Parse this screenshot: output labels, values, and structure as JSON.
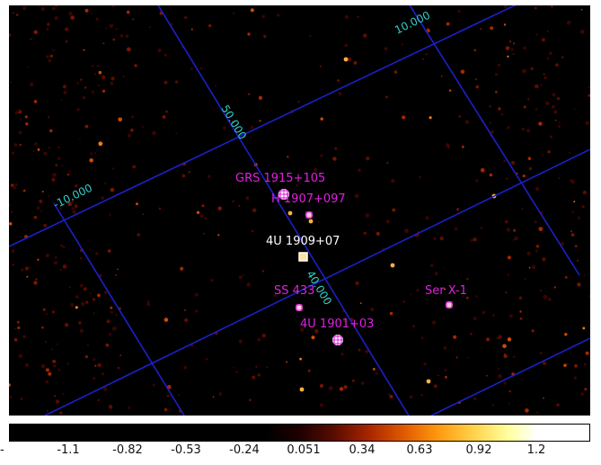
{
  "image": {
    "sources": [
      {
        "label": "GRS 1915+105",
        "color": "#e020e0"
      },
      {
        "label": "H 1907+097",
        "color": "#e020e0"
      },
      {
        "label": "4U 1909+07",
        "color": "#ffffff"
      },
      {
        "label": "SS 433",
        "color": "#e020e0"
      },
      {
        "label": "4U 1901+03",
        "color": "#e020e0"
      },
      {
        "label": "Ser X-1",
        "color": "#e020e0"
      }
    ],
    "grid_labels": [
      "10.000",
      "50.000",
      "-10.000",
      "40.000"
    ],
    "grid_color": "#1c20c8",
    "grid_label_color": "#2fd0c8"
  },
  "colorbar": {
    "dash": "-",
    "ticks": [
      "-1.1",
      "-0.82",
      "-0.53",
      "-0.24",
      "0.051",
      "0.34",
      "0.63",
      "0.92",
      "1.2"
    ]
  }
}
